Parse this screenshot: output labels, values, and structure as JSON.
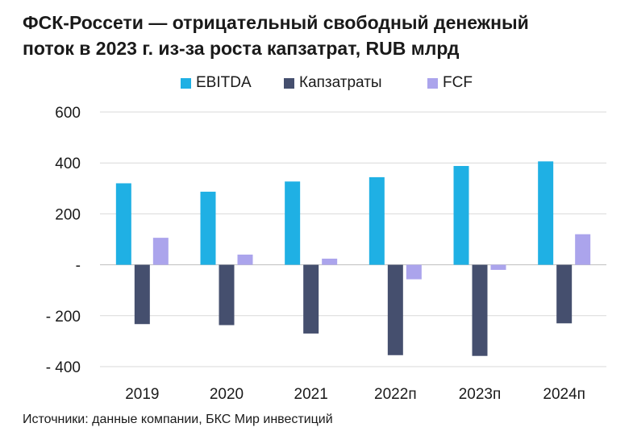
{
  "title_line1": "ФСК-Россети — отрицательный свободный денежный",
  "title_line2": "поток в 2023 г. из-за роста капзатрат, RUB млрд",
  "source": "Источники: данные компании, БКС Мир инвестиций",
  "colors": {
    "ebitda": "#1FB0E4",
    "capex": "#454F6E",
    "fcf": "#ABA4EC",
    "grid": "#d9d9d9"
  },
  "chart_data": {
    "type": "bar",
    "title": "ФСК-Россети — отрицательный свободный денежный поток в 2023 г. из-за роста капзатрат, RUB млрд",
    "categories": [
      "2019",
      "2020",
      "2021",
      "2022п",
      "2023п",
      "2024п"
    ],
    "series": [
      {
        "name": "EBITDA",
        "values": [
          320,
          287,
          327,
          344,
          388,
          406
        ]
      },
      {
        "name": "Капзатраты",
        "values": [
          -233,
          -237,
          -270,
          -355,
          -358,
          -230
        ]
      },
      {
        "name": "FCF",
        "values": [
          106,
          40,
          24,
          -57,
          -20,
          120
        ]
      }
    ],
    "ylim": [
      -400,
      600
    ],
    "yticks": [
      600,
      400,
      200,
      0,
      -200,
      -400
    ],
    "ytick_labels": [
      "600",
      "400",
      "200",
      "-",
      "- 200",
      "- 400"
    ],
    "grid": true,
    "legend_position": "top"
  }
}
